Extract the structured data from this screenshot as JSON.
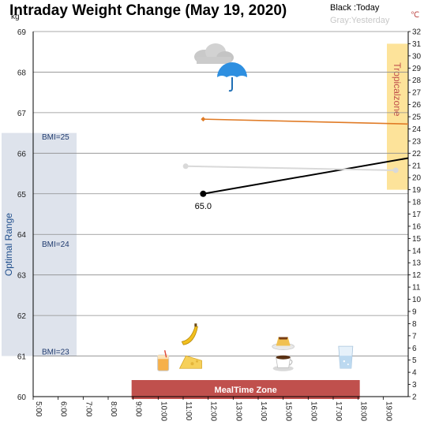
{
  "chart_data": {
    "type": "line",
    "title": "Intraday Weight Change (May 19, 2020)",
    "legend": {
      "today": "Black :Today",
      "yesterday": "Gray:Yesterday"
    },
    "y_left": {
      "unit": "kg",
      "min": 60,
      "max": 69,
      "ticks": [
        60,
        61,
        62,
        63,
        64,
        65,
        66,
        67,
        68,
        69
      ]
    },
    "y_right": {
      "unit": "℃",
      "min": 2,
      "max": 32,
      "ticks": [
        2,
        3,
        4,
        5,
        6,
        7,
        8,
        9,
        10,
        11,
        12,
        13,
        14,
        15,
        16,
        17,
        18,
        19,
        20,
        21,
        22,
        23,
        24,
        25,
        26,
        27,
        28,
        29,
        30,
        31,
        32
      ]
    },
    "x": {
      "min": 5,
      "max": 20,
      "ticks": [
        {
          "v": 5,
          "label": "5:00"
        },
        {
          "v": 6,
          "label": "6:00"
        },
        {
          "v": 7,
          "label": "7:00"
        },
        {
          "v": 8,
          "label": "8:00"
        },
        {
          "v": 9,
          "label": "9:00"
        },
        {
          "v": 10,
          "label": "10:00"
        },
        {
          "v": 11,
          "label": "11:00"
        },
        {
          "v": 12,
          "label": "12:00"
        },
        {
          "v": 13,
          "label": "13:00"
        },
        {
          "v": 14,
          "label": "14:00"
        },
        {
          "v": 15,
          "label": "15:00"
        },
        {
          "v": 16,
          "label": "16:00"
        },
        {
          "v": 17,
          "label": "17:00"
        },
        {
          "v": 18,
          "label": "18:00"
        },
        {
          "v": 19,
          "label": "19:00"
        }
      ]
    },
    "series": [
      {
        "key": "today",
        "color": "#000000",
        "axis": "left",
        "points": [
          {
            "x": 11.8,
            "y": 65.0,
            "marker": true,
            "label": "65.0"
          },
          {
            "x": 20.0,
            "y": 65.88
          }
        ]
      },
      {
        "key": "yesterday",
        "color": "#d9d9d9",
        "axis": "left",
        "points": [
          {
            "x": 11.1,
            "y": 65.68,
            "marker": true
          },
          {
            "x": 19.5,
            "y": 65.58,
            "marker": true
          }
        ]
      },
      {
        "key": "temperature",
        "color": "#e07b26",
        "axis": "right",
        "points": [
          {
            "x": 11.8,
            "y": 24.8,
            "marker": true
          },
          {
            "x": 20.0,
            "y": 24.4
          }
        ]
      }
    ],
    "bands": {
      "optimal_range": {
        "label": "Optimal Range",
        "y_from": 61,
        "y_to": 66.5,
        "color": "#dee3ec"
      },
      "tropical_zone": {
        "label": "Tropicalzone",
        "temp_from": 19,
        "temp_to": 31,
        "color": "#fde39a"
      },
      "meal_zone": {
        "label": "MealTime Zone",
        "x_from": 9,
        "x_to": 18,
        "color": "#c0504d"
      }
    },
    "bmi_markers": [
      {
        "label": "BMI=25",
        "y": 66.4
      },
      {
        "label": "BMI=24",
        "y": 63.75
      },
      {
        "label": "BMI=23",
        "y": 61.1
      }
    ],
    "weather": {
      "icon": "rain-cloud-umbrella-icon"
    },
    "meal_icons": [
      {
        "name": "banana-icon",
        "x": 11.2,
        "y": 61.55
      },
      {
        "name": "juice-icon",
        "x": 10.2,
        "y": 60.85
      },
      {
        "name": "cheese-icon",
        "x": 11.3,
        "y": 60.85
      },
      {
        "name": "pudding-icon",
        "x": 15.0,
        "y": 61.35
      },
      {
        "name": "coffee-icon",
        "x": 15.0,
        "y": 60.85
      },
      {
        "name": "water-glass-icon",
        "x": 17.5,
        "y": 60.95
      }
    ]
  }
}
